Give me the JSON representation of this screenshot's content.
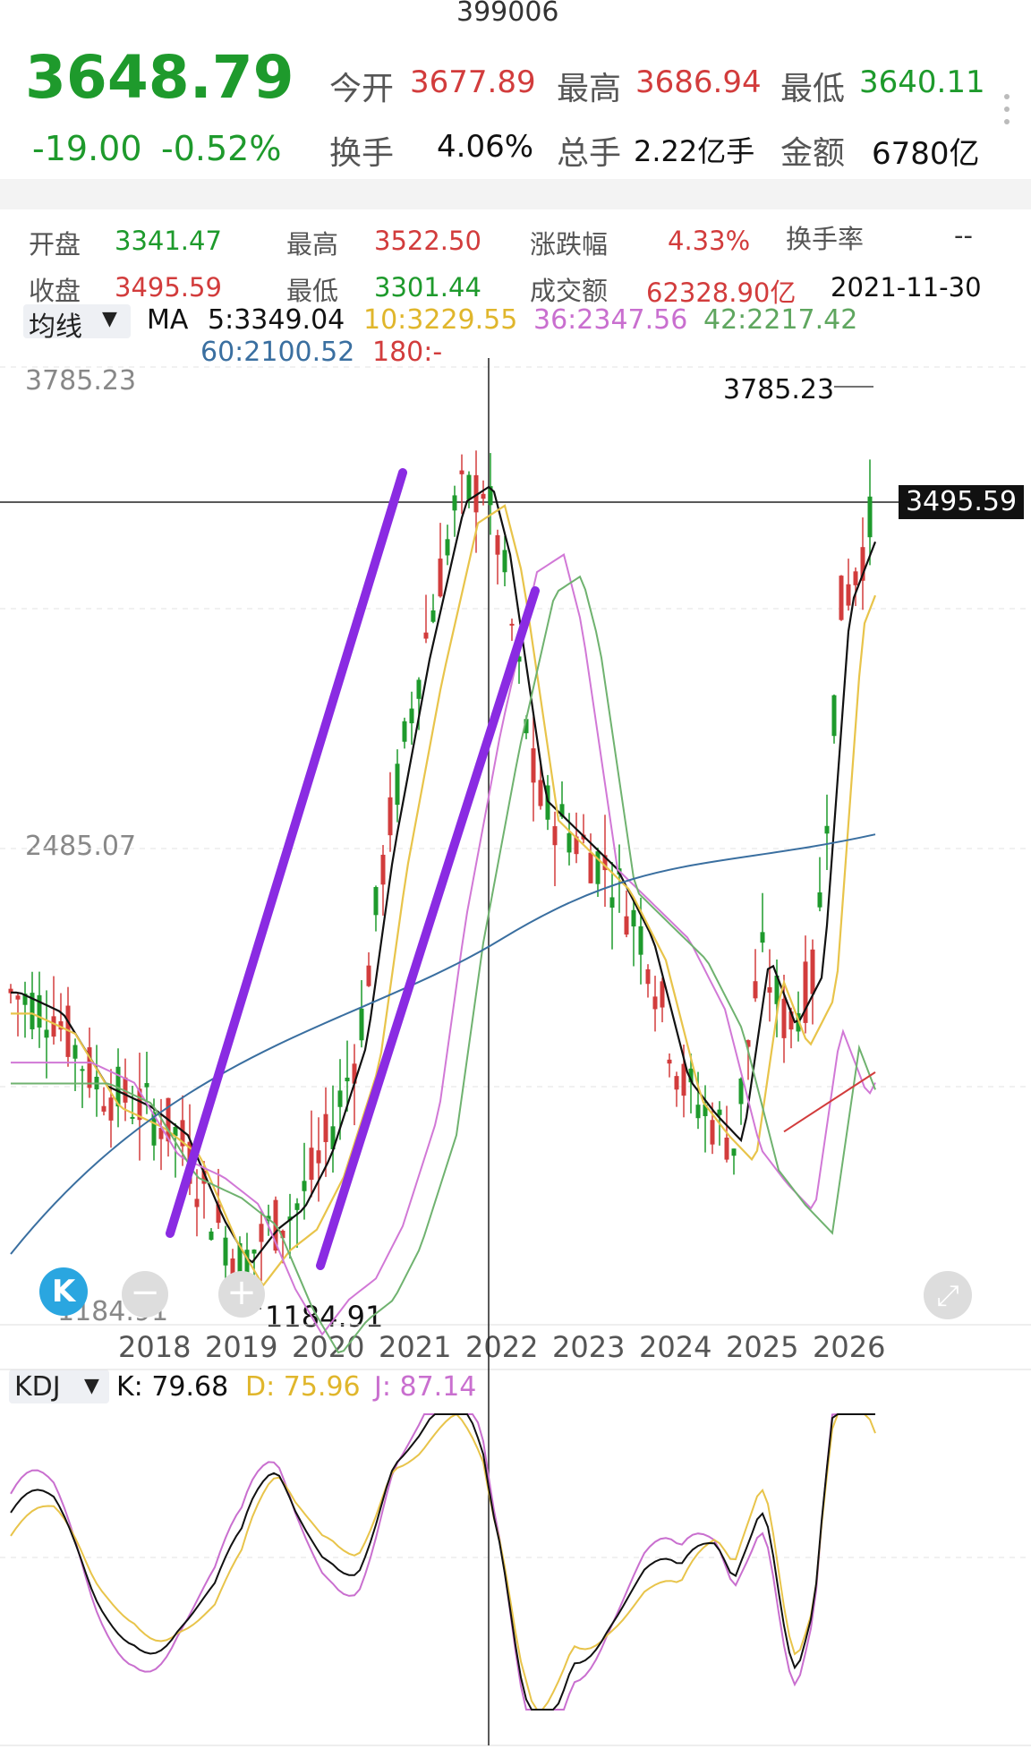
{
  "header": {
    "code": "399006",
    "price": "3648.79",
    "change": "-19.00",
    "change_pct": "-0.52%",
    "open_label": "今开",
    "open_value": "3677.89",
    "high_label": "最高",
    "high_value": "3686.94",
    "low_label": "最低",
    "low_value": "3640.11",
    "turnover_label": "换手",
    "turnover_value": "4.06%",
    "volume_label": "总手",
    "volume_value": "2.22亿手",
    "amount_label": "金额",
    "amount_value": "6780亿"
  },
  "info": {
    "open_label": "开盘",
    "open_value": "3341.47",
    "high_label": "最高",
    "high_value": "3522.50",
    "change_label": "涨跌幅",
    "change_value": "4.33%",
    "turnover_label": "换手率",
    "turnover_value": "--",
    "close_label": "收盘",
    "close_value": "3495.59",
    "low_label": "最低",
    "low_value": "3301.44",
    "amount_label": "成交额",
    "amount_value": "62328.90亿",
    "date": "2021-11-30"
  },
  "ma_bar": {
    "selector": "均线",
    "name": "MA",
    "ma5": "5:3349.04",
    "ma10": "10:3229.55",
    "ma36": "36:2347.56",
    "ma42": "42:2217.42",
    "ma60": "60:2100.52",
    "ma180": "180:-"
  },
  "kdj_bar": {
    "selector": "KDJ",
    "k": "K: 79.68",
    "d": "D: 75.96",
    "j": "J: 87.14"
  },
  "colors": {
    "up": "#d23c3c",
    "down": "#1e9a2c",
    "ma5": "#111111",
    "ma10": "#e8c44a",
    "ma36": "#d178d6",
    "ma42": "#6fb26f",
    "ma60": "#3a6fa0",
    "ma180": "#d23c3c",
    "trend": "#8a2be2"
  },
  "chart_data": {
    "type": "candlestick",
    "y_axis_labels": [
      "3785.23",
      "2485.07",
      "1184.91"
    ],
    "x_axis_labels": [
      "2018",
      "2019",
      "2020",
      "2021",
      "2022",
      "2023",
      "2024",
      "2025",
      "2026"
    ],
    "max_marker": "3785.23",
    "min_marker": "1184.91",
    "crosshair_value": "3495.59",
    "ylim": [
      1184.91,
      3785.23
    ],
    "grid": true,
    "indicator": "KDJ",
    "kdj": {
      "K": 79.68,
      "D": 75.96,
      "J": 87.14
    },
    "ma": {
      "MA5": 3349.04,
      "MA10": 3229.55,
      "MA36": 2347.56,
      "MA42": 2217.42,
      "MA60": 2100.52
    }
  }
}
